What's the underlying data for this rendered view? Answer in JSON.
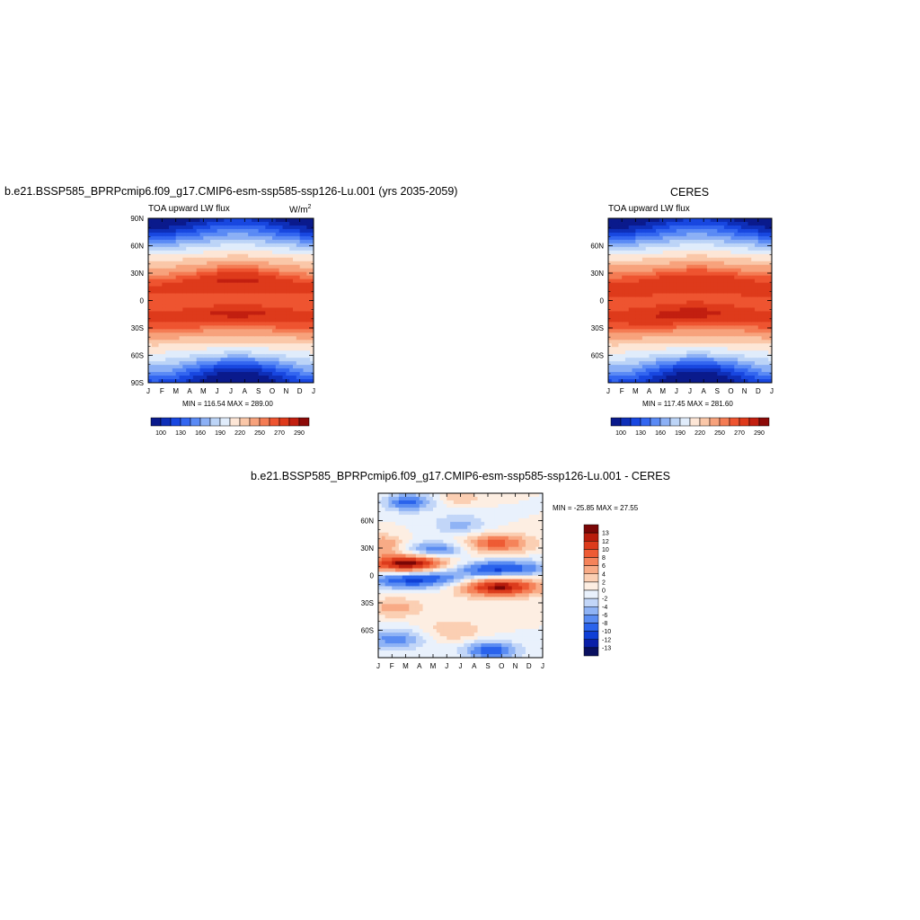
{
  "top_left": {
    "title": "b.e21.BSSP585_BPRPcmip6.f09_g17.CMIP6-esm-ssp585-ssp126-Lu.001 (yrs 2035-2059)",
    "left_label": "TOA upward LW flux",
    "units": "W/m",
    "units_sup": "2",
    "minmax": "MIN = 116.54 MAX = 289.00"
  },
  "top_right": {
    "title": "CERES",
    "left_label": "TOA upward LW flux",
    "minmax": "MIN = 117.45 MAX = 281.60"
  },
  "bottom": {
    "title": "b.e21.BSSP585_BPRPcmip6.f09_g17.CMIP6-esm-ssp585-ssp126-Lu.001 - CERES",
    "minmax": "MIN = -25.85 MAX =  27.55"
  },
  "colors": {
    "abs_scale": [
      "#0a1a8c",
      "#0e2fb8",
      "#1847e0",
      "#3366f0",
      "#5a8af5",
      "#8cb0f5",
      "#bcd4f7",
      "#e0ecfb",
      "#fde6d6",
      "#fac7a8",
      "#f7a27c",
      "#f47c54",
      "#ee5430",
      "#de3a1b",
      "#c21f10",
      "#8c0a08"
    ],
    "diff_scale": [
      "#0a1060",
      "#0a1fa8",
      "#0f3fd6",
      "#2a63ec",
      "#5a8cf2",
      "#8fb3f5",
      "#c2d6f8",
      "#e9f1fc",
      "#fdeee2",
      "#fbcfb3",
      "#f8ab86",
      "#f5835a",
      "#ee5b34",
      "#dc3b1c",
      "#b81c0c",
      "#7a0606"
    ]
  },
  "chart_data": [
    {
      "type": "heatmap",
      "title": "b.e21.BSSP585_BPRPcmip6.f09_g17.CMIP6-esm-ssp585-ssp126-Lu.001 (yrs 2035-2059)",
      "subtitle_left": "TOA upward LW flux",
      "units": "W/m2",
      "x_ticks": [
        "J",
        "F",
        "M",
        "A",
        "M",
        "J",
        "J",
        "A",
        "S",
        "O",
        "N",
        "D",
        "J"
      ],
      "y_ticks": [
        "90N",
        "60N",
        "30N",
        "0",
        "30S",
        "60S",
        "90S"
      ],
      "ylim": [
        -90,
        90
      ],
      "colorbar_labels": [
        "100",
        "130",
        "160",
        "190",
        "220",
        "250",
        "270",
        "290"
      ],
      "min": 116.54,
      "max": 289.0
    },
    {
      "type": "heatmap",
      "title": "CERES",
      "subtitle_left": "TOA upward LW flux",
      "x_ticks": [
        "J",
        "F",
        "M",
        "A",
        "M",
        "J",
        "J",
        "A",
        "S",
        "O",
        "N",
        "D",
        "J"
      ],
      "y_ticks": [
        "60N",
        "30N",
        "0",
        "30S",
        "60S"
      ],
      "ylim": [
        -90,
        90
      ],
      "colorbar_labels": [
        "100",
        "130",
        "160",
        "190",
        "220",
        "250",
        "270",
        "290"
      ],
      "min": 117.45,
      "max": 281.6
    },
    {
      "type": "heatmap",
      "title": "b.e21.BSSP585_BPRPcmip6.f09_g17.CMIP6-esm-ssp585-ssp126-Lu.001 - CERES",
      "x_ticks": [
        "J",
        "F",
        "M",
        "A",
        "M",
        "J",
        "J",
        "A",
        "S",
        "O",
        "N",
        "D",
        "J"
      ],
      "y_ticks": [
        "60N",
        "30N",
        "0",
        "30S",
        "60S"
      ],
      "ylim": [
        -90,
        90
      ],
      "colorbar_labels": [
        "13",
        "12",
        "10",
        "8",
        "6",
        "4",
        "2",
        "0",
        "-2",
        "-4",
        "-6",
        "-8",
        "-10",
        "-12",
        "-13"
      ],
      "min": -25.85,
      "max": 27.55
    }
  ]
}
